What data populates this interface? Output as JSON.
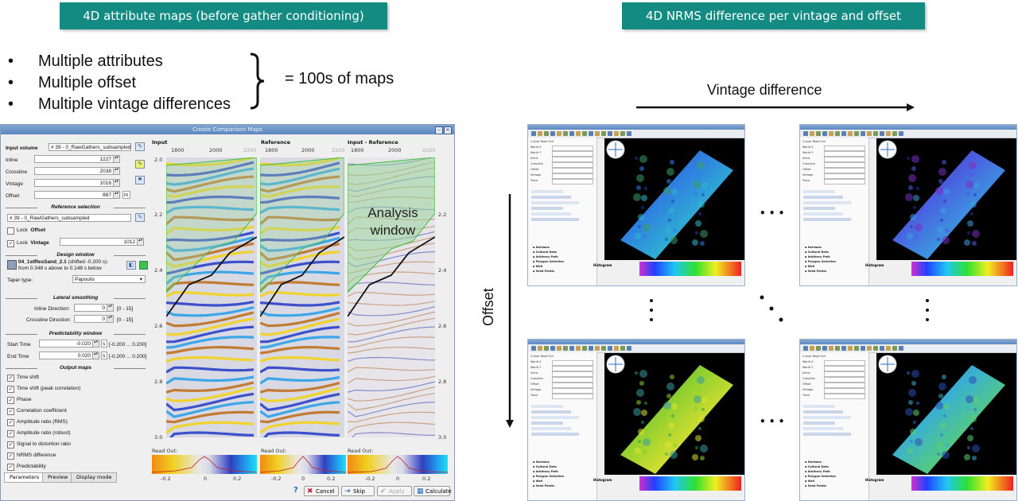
{
  "left_banner": "4D attribute maps (before gather conditioning)",
  "right_banner": "4D NRMS difference per vintage and offset",
  "bullets": [
    "Multiple attributes",
    "Multiple offset",
    "Multiple vintage differences"
  ],
  "maps_summary": "= 100s of maps",
  "vintage_difference_label": "Vintage difference",
  "offset_label": "Offset",
  "ellipsis": "• • •",
  "dialog": {
    "title": "Create Comparison Maps",
    "input_volume_label": "Input volume",
    "input_volume_value": "# 39 - 0_RawGathers_subsampled",
    "fields": [
      {
        "label": "Inline",
        "value": "1227"
      },
      {
        "label": "Crossline",
        "value": "2038"
      },
      {
        "label": "Vintage",
        "value": "1016"
      },
      {
        "label": "Offset",
        "value": "887",
        "unit": "m"
      }
    ],
    "reference_section": "Reference selection",
    "reference_value": "# 39 - 0_RawGathers_subsampled",
    "lock_label": "Lock",
    "lock_offset": "Offset",
    "lock_vintage": "Vintage",
    "lock_vintage_value": "1012",
    "design_section": "Design window",
    "design_horizon": "04_1stResSand_2.1",
    "design_detail_1": "(shifted -0.200 s):",
    "design_detail_2": "from 0.348 s above to 0.148 s below",
    "taper_label": "Taper type:",
    "taper_value": "Papoulis",
    "lateral_section": "Lateral smoothing",
    "inline_direction_label": "Inline Direction:",
    "inline_direction_value": "0",
    "inline_direction_range": "[0 - 15]",
    "crossline_direction_label": "Crossline Direction:",
    "crossline_direction_value": "0",
    "crossline_direction_range": "[0 - 15]",
    "predictability_section": "Predictability window",
    "start_time_label": "Start Time",
    "start_time_value": "-0.020",
    "start_time_range": "[-0.200 ... 0.200]",
    "end_time_label": "End Time",
    "end_time_value": "0.020",
    "end_time_range": "[-0.200 ... 0.200]",
    "time_unit": "s",
    "output_section": "Output maps",
    "output_maps": [
      "Time shift",
      "Time shift (peak correlation)",
      "Phase",
      "Correlation coefficient",
      "Amplitude ratio (RMS)",
      "Amplitude ratio (robust)",
      "Signal to distortion ratio",
      "NRMS difference",
      "Predictability"
    ],
    "tabs": [
      "Parameters",
      "Preview",
      "Display mode"
    ],
    "panel_titles": [
      "Input",
      "Reference",
      "Input - Reference"
    ],
    "x_ticks": [
      "1800",
      "2000",
      "2200"
    ],
    "y_ticks": [
      "2.0",
      "2.2",
      "2.4",
      "2.6",
      "2.8",
      "3.0"
    ],
    "analysis_window_line1": "Analysis",
    "analysis_window_line2": "window",
    "read_out": "Read Out:",
    "colorbar_ticks": [
      "-0.2",
      "0",
      "0.2"
    ],
    "buttons": [
      "Cancel",
      "Skip",
      "Apply",
      "Calculate"
    ],
    "help_glyph": "?"
  },
  "mini_windows": {
    "title": "Predictability Map - NRMS difference",
    "readout_rows": [
      "Cursor Read Out",
      "World X",
      "World Y",
      "Inline",
      "Crossline",
      "Offset",
      "Vintage",
      "Trace"
    ],
    "tree_items": [
      "Horizons",
      "Cultural Data",
      "Arbitrary Path",
      "Polygon Selection",
      "Well",
      "Seed Points"
    ],
    "histogram_label": "Histogram",
    "colors": {
      "frame": "#9ab0cc",
      "map_bg": "#000000"
    }
  },
  "colors": {
    "banner": "#138b83",
    "dialog_border": "#8a9bb3"
  }
}
